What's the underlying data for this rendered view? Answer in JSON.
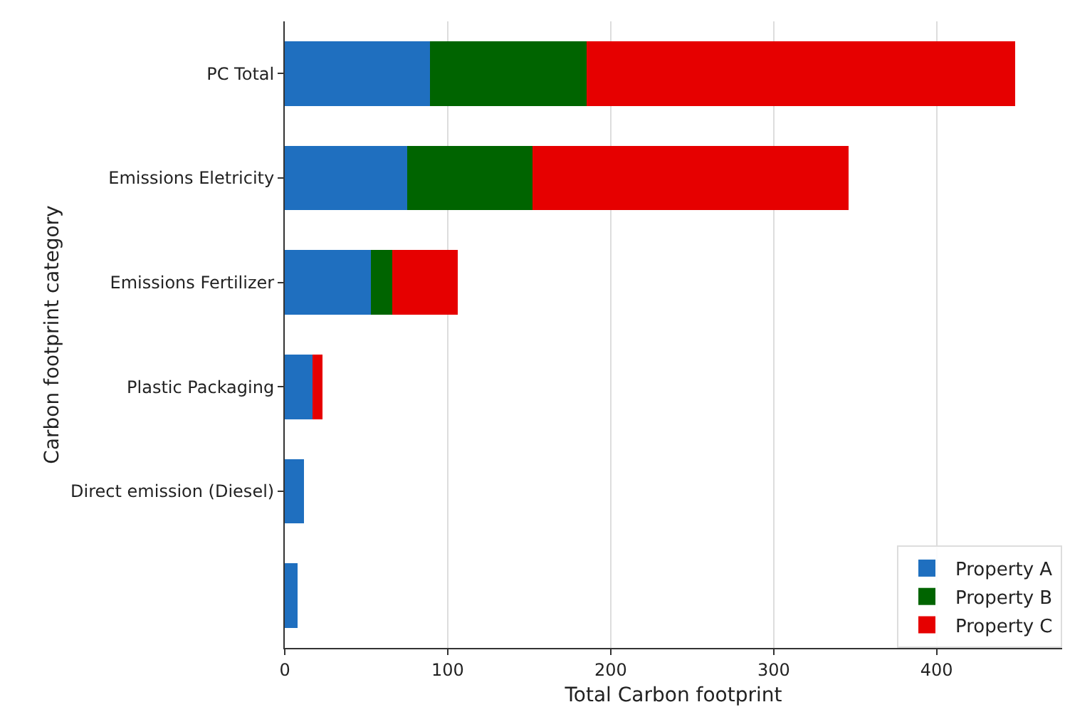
{
  "chart_data": {
    "type": "bar",
    "orientation": "horizontal",
    "stacked": true,
    "xlabel": "Total Carbon footprint",
    "ylabel": "Carbon footprint category",
    "categories": [
      "PC Total",
      "Emissions Eletricity",
      "Emissions Fertilizer",
      "Plastic Packaging",
      "Direct emission (Diesel)",
      null
    ],
    "series": [
      {
        "name": "Property A",
        "color": "#1f6fbf",
        "values": [
          89,
          75,
          53,
          17,
          12,
          8
        ]
      },
      {
        "name": "Property B",
        "color": "#006400",
        "values": [
          96,
          77,
          13,
          0,
          0,
          0
        ]
      },
      {
        "name": "Property C",
        "color": "#e60000",
        "values": [
          263,
          194,
          40,
          6,
          0,
          0
        ]
      }
    ],
    "xlim": [
      0,
      477
    ],
    "xticks": [
      0,
      100,
      200,
      300,
      400
    ],
    "grid": "x",
    "legend": "bottom right"
  }
}
